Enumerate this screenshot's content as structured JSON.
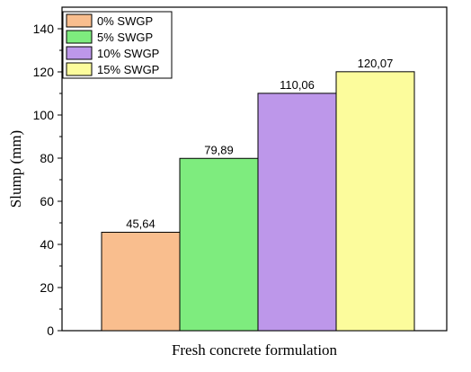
{
  "chart_data": {
    "type": "bar",
    "categories": [
      "0% SWGP",
      "5% SWGP",
      "10% SWGP",
      "15% SWGP"
    ],
    "values": [
      45.64,
      79.89,
      110.06,
      120.07
    ],
    "data_labels": [
      "45,64",
      "79,89",
      "110,06",
      "120,07"
    ],
    "colors": [
      "#F9BE8E",
      "#7EEC7E",
      "#BD97EA",
      "#FCFC9C"
    ],
    "xlabel": "Fresh concrete formulation",
    "ylabel": "Slump (mm)",
    "ylim": [
      0,
      150
    ],
    "yticks": [
      0,
      20,
      40,
      60,
      80,
      100,
      120,
      140
    ],
    "grid": false,
    "legend": {
      "placement": "top-left",
      "entries": [
        "0% SWGP",
        "5% SWGP",
        "10% SWGP",
        "15% SWGP"
      ]
    }
  }
}
